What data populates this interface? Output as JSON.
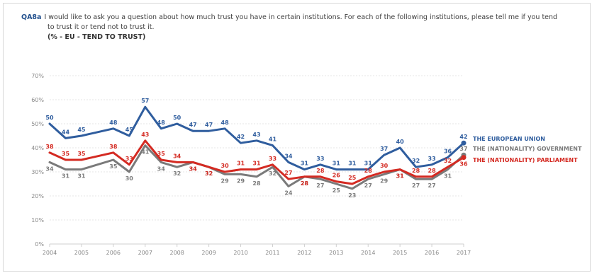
{
  "header": {
    "code": "QA8a",
    "question_line1": "I would like to ask you a question about how much trust you have in certain institutions. For each of the following institutions, please tell me if you tend",
    "question_line2": "to trust it or tend not to trust it.",
    "subtitle": "(% - EU - TEND TO TRUST)"
  },
  "chart_data": {
    "type": "line",
    "title": "",
    "subtitle": "(% - EU - TEND TO TRUST)",
    "xlabel": "",
    "ylabel": "",
    "ylim": [
      0,
      70
    ],
    "yticks": [
      "0%",
      "10%",
      "20%",
      "30%",
      "40%",
      "50%",
      "60%",
      "70%"
    ],
    "grid": true,
    "legend_position": "right",
    "xticks": [
      "2004",
      "2005",
      "2006",
      "2007",
      "2008",
      "2009",
      "2010",
      "2011",
      "2012",
      "2013",
      "2014",
      "2015",
      "2016",
      "2017"
    ],
    "x": [
      2004,
      2004.5,
      2005,
      2006,
      2006.5,
      2007,
      2007.5,
      2008,
      2008.5,
      2009,
      2009.5,
      2010,
      2010.5,
      2011,
      2011.5,
      2012,
      2012.5,
      2013,
      2013.5,
      2014,
      2014.5,
      2015,
      2015.5,
      2016,
      2016.5,
      2017
    ],
    "series": [
      {
        "name": "THE EUROPEAN UNION",
        "color": "#2f5d9e",
        "values": [
          50,
          44,
          45,
          48,
          45,
          57,
          48,
          50,
          47,
          47,
          48,
          42,
          43,
          41,
          34,
          31,
          33,
          31,
          31,
          31,
          37,
          40,
          32,
          33,
          36,
          42
        ]
      },
      {
        "name": "THE (NATIONALITY) GOVERNMENT",
        "color": "#7a7a7a",
        "values": [
          34,
          31,
          31,
          35,
          30,
          41,
          34,
          32,
          34,
          32,
          29,
          29,
          28,
          32,
          24,
          28,
          27,
          25,
          23,
          27,
          29,
          31,
          27,
          27,
          31,
          37
        ]
      },
      {
        "name": "THE (NATIONALITY) PARLIAMENT",
        "color": "#d42a22",
        "values": [
          38,
          35,
          35,
          38,
          33,
          43,
          35,
          34,
          34,
          32,
          30,
          31,
          31,
          33,
          27,
          28,
          28,
          26,
          25,
          28,
          30,
          31,
          28,
          28,
          32,
          36
        ]
      }
    ]
  }
}
